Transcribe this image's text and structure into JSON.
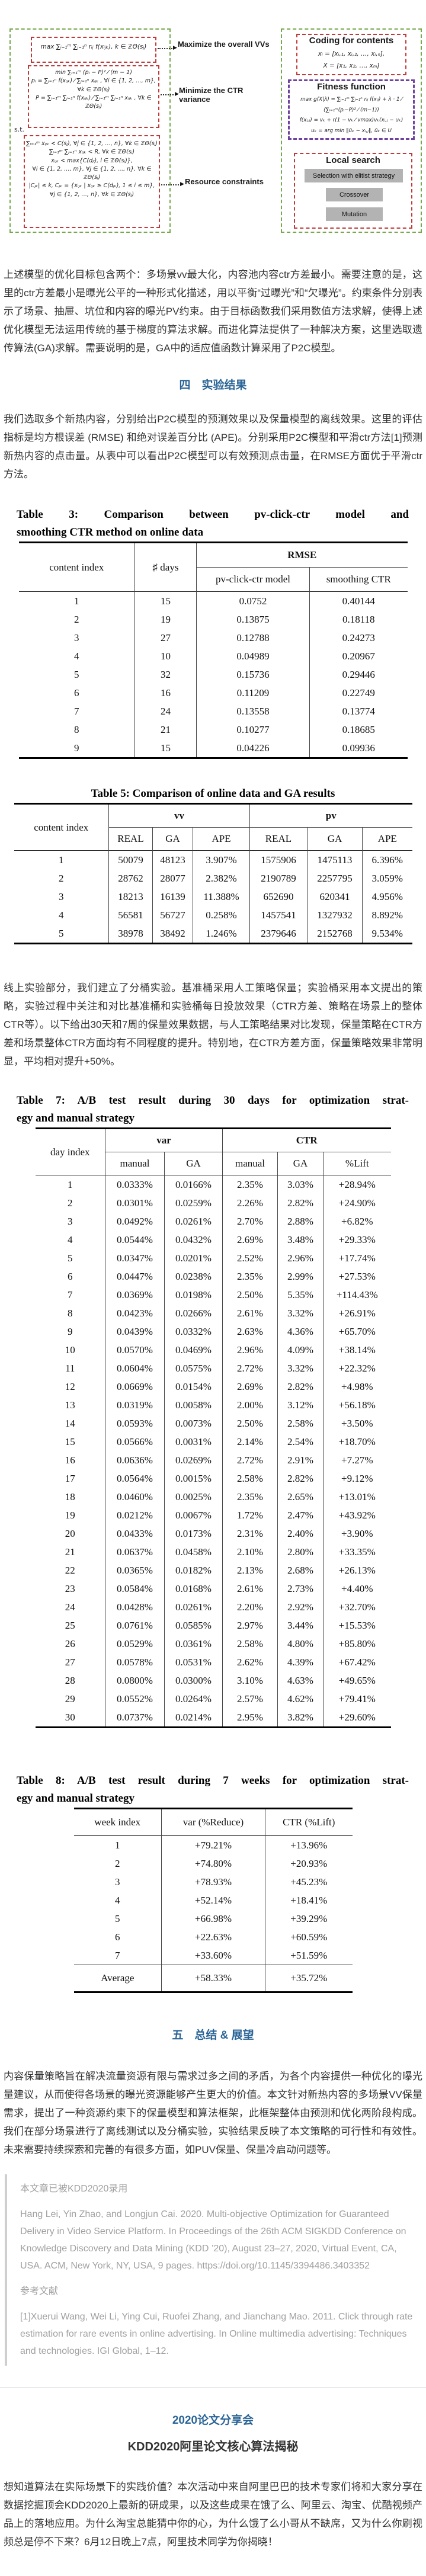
{
  "figure": {
    "left_panel": {
      "objective_max": "max ∑ᵢ₌₁ᵐ ∑ⱼ₌₁ⁿ rᵢⱼ f(xᵢⱼₖ), k ∈ ℤΘ(sⱼ)",
      "objective_min_lines": [
        "min  ∑ᵢ₌₁ᵐ (pᵢ − P)² ⁄ (m − 1)",
        "pᵢ = ∑ⱼ₌₁ⁿ f(xᵢⱼₖ) ⁄ ∑ⱼ₌₁ⁿ xᵢⱼₖ , ∀i ∈ {1, 2, …, m}, ∀k ∈ ℤΘ(sⱼ)",
        "P = ∑ᵢ₌₁ᵐ ∑ⱼ₌₁ⁿ f(xᵢⱼₖ) ⁄ ∑ᵢ₌₁ᵐ ∑ⱼ₌₁ⁿ xᵢⱼₖ , ∀k ∈ ℤΘ(sⱼ)"
      ],
      "st_label": "s.t.",
      "constraint_lines": [
        "∑ᵢ₌₁ᵐ xᵢⱼₖ < C(sⱼ), ∀j ∈ {1, 2, …, n}, ∀k ∈ ℤΘ(sⱼ)",
        "∑ᵢ₌₁ᵐ ∑ⱼ₌₁ⁿ xᵢⱼₖ < R, ∀k ∈ ℤΘ(sⱼ)",
        "xᵢⱼₖ < max{C(dⱼₗ), l ∈ ℤΘ(sⱼ)},",
        "∀i ∈ {1, 2, …, m}, ∀j ∈ {1, 2, …, n}, ∀k ∈ ℤΘ(sⱼ)",
        "|Cⱼₖ| ≤ k, Cⱼₖ = {xᵢⱼₖ | xᵢⱼₖ ≥ C(dⱼₖ), 1 ≤ i ≤ m},",
        "∀j ∈ {1, 2, …, n}, ∀k ∈ ℤΘ(sⱼ)"
      ]
    },
    "arrow_labels": {
      "maximize": "Maximize the overall VVs",
      "minimize": "Minimize the CTR variance",
      "resource": "Resource constraints",
      "arrow_glyph": "▶"
    },
    "right_panel": {
      "coding_title": "Coding for contents",
      "coding_lines": [
        "xᵢ = [xᵢ,₁, xᵢ,₂, …, xᵢ,ₙ],",
        "X = [x₁, x₂, …, xₘ]"
      ],
      "fitness_title": "Fitness function",
      "fitness_lines": [
        "max g(X|λ) = ∑ᵢ₌₁ᵐ ∑ⱼ₌₁ⁿ rᵢⱼ f(xᵢⱼ) + λ · 1 ⁄ (∑ᵢ₌₁ᵐ(pᵢ−P)² ⁄ (m−1))",
        "f(xᵢ,ⱼ) = vₖ + r(1 − vₖ ⁄ vmax)vₖ(xᵢ,ⱼ − uₖ)",
        "uₖ = arg min ‖ũₖ − xᵢ,ⱼ‖, ũₖ ∈ U"
      ],
      "local_title": "Local search",
      "local_buttons": [
        "Selection with elitist strategy",
        "Crossover",
        "Mutation"
      ]
    },
    "colors": {
      "outer_box_green": "#76a94c",
      "inner_box_red": "#bf3a3a",
      "fitness_box_purple": "#6f42a0",
      "button_gray": "#b3b3b3"
    }
  },
  "para1": "上述模型的优化目标包含两个：多场景vv最大化，内容池内容ctr方差最小。需要注意的是，这里的ctr方差最小是曝光公平的一种形式化描述，用以平衡“过曝光”和“欠曝光”。约束条件分别表示了场景、抽屉、坑位和内容的曝光PV约束。由于目标函数我们采用数值方法求解，使得上述优化模型无法运用传统的基于梯度的算法求解。而进化算法提供了一种解决方案，这里选取遗传算法(GA)求解。需要说明的是，GA中的适应值函数计算采用了P2C模型。",
  "section4": {
    "title": "四　实验结果",
    "accent_color": "#2a6496"
  },
  "para2": "我们选取多个新热内容，分别给出P2C模型的预测效果以及保量模型的离线效果。这里的评估指标是均方根误差 (RMSE) 和绝对误差百分比 (APE)。分别采用P2C模型和平滑ctr方法[1]预测新热内容的点击量。从表中可以看出P2C模型可以有效预测点击量，在RMSE方面优于平滑ctr方法。",
  "table3": {
    "caption_line1": "Table 3: Comparison between pv-click-ctr model and",
    "caption_line2": "smoothing CTR method on online data",
    "col_content_index": "content index",
    "col_days": "♯ days",
    "col_rmse": "RMSE",
    "col_model": "pv-click-ctr model",
    "col_smoothing": "smoothing CTR",
    "rows": [
      [
        "1",
        "15",
        "0.0752",
        "0.40144"
      ],
      [
        "2",
        "19",
        "0.13875",
        "0.18118"
      ],
      [
        "3",
        "27",
        "0.12788",
        "0.24273"
      ],
      [
        "4",
        "10",
        "0.04989",
        "0.20967"
      ],
      [
        "5",
        "32",
        "0.15736",
        "0.29446"
      ],
      [
        "6",
        "16",
        "0.11209",
        "0.22749"
      ],
      [
        "7",
        "24",
        "0.13558",
        "0.13774"
      ],
      [
        "8",
        "21",
        "0.10277",
        "0.18685"
      ],
      [
        "9",
        "15",
        "0.04226",
        "0.09936"
      ]
    ]
  },
  "table5": {
    "caption": "Table 5: Comparison of online data and GA results",
    "col_content_index": "content index",
    "col_vv": "vv",
    "col_pv": "pv",
    "sub_headers": [
      "REAL",
      "GA",
      "APE",
      "REAL",
      "GA",
      "APE"
    ],
    "rows": [
      [
        "1",
        "50079",
        "48123",
        "3.907%",
        "1575906",
        "1475113",
        "6.396%"
      ],
      [
        "2",
        "28762",
        "28077",
        "2.382%",
        "2190789",
        "2257795",
        "3.059%"
      ],
      [
        "3",
        "18213",
        "16139",
        "11.388%",
        "652690",
        "620341",
        "4.956%"
      ],
      [
        "4",
        "56581",
        "56727",
        "0.258%",
        "1457541",
        "1327932",
        "8.892%"
      ],
      [
        "5",
        "38978",
        "38492",
        "1.246%",
        "2379646",
        "2152768",
        "9.534%"
      ]
    ]
  },
  "para3": "线上实验部分，我们建立了分桶实验。基准桶采用人工策略保量；实验桶采用本文提出的策略，实验过程中关注和对比基准桶和实验桶每日投放效果（CTR方差、策略在场景上的整体CTR等）。以下给出30天和7周的保量效果数据，与人工策略结果对比发现，保量策略在CTR方差和场景整体CTR方面均有不同程度的提升。特别地，在CTR方差方面，保量策略效果非常明显，平均相对提升+50%。",
  "table7": {
    "caption_line1": "Table 7: A/B test result during 30 days for optimization strat-",
    "caption_line2": "egy and manual strategy",
    "col_day_index": "day index",
    "col_var": "var",
    "col_ctr": "CTR",
    "sub_manual1": "manual",
    "sub_ga1": "GA",
    "sub_manual2": "manual",
    "sub_ga2": "GA",
    "sub_lift": "%Lift",
    "rows": [
      [
        "1",
        "0.0333%",
        "0.0166%",
        "2.35%",
        "3.03%",
        "+28.94%"
      ],
      [
        "2",
        "0.0301%",
        "0.0259%",
        "2.26%",
        "2.82%",
        "+24.90%"
      ],
      [
        "3",
        "0.0492%",
        "0.0261%",
        "2.70%",
        "2.88%",
        "+6.82%"
      ],
      [
        "4",
        "0.0544%",
        "0.0432%",
        "2.69%",
        "3.48%",
        "+29.33%"
      ],
      [
        "5",
        "0.0347%",
        "0.0201%",
        "2.52%",
        "2.96%",
        "+17.74%"
      ],
      [
        "6",
        "0.0447%",
        "0.0238%",
        "2.35%",
        "2.99%",
        "+27.53%"
      ],
      [
        "7",
        "0.0369%",
        "0.0198%",
        "2.50%",
        "5.35%",
        "+114.43%"
      ],
      [
        "8",
        "0.0423%",
        "0.0266%",
        "2.61%",
        "3.32%",
        "+26.91%"
      ],
      [
        "9",
        "0.0439%",
        "0.0332%",
        "2.63%",
        "4.36%",
        "+65.70%"
      ],
      [
        "10",
        "0.0570%",
        "0.0469%",
        "2.96%",
        "4.09%",
        "+38.14%"
      ],
      [
        "11",
        "0.0604%",
        "0.0575%",
        "2.72%",
        "3.32%",
        "+22.32%"
      ],
      [
        "12",
        "0.0669%",
        "0.0154%",
        "2.69%",
        "2.82%",
        "+4.98%"
      ],
      [
        "13",
        "0.0319%",
        "0.0058%",
        "2.00%",
        "3.12%",
        "+56.18%"
      ],
      [
        "14",
        "0.0593%",
        "0.0073%",
        "2.50%",
        "2.58%",
        "+3.50%"
      ],
      [
        "15",
        "0.0566%",
        "0.0031%",
        "2.14%",
        "2.54%",
        "+18.70%"
      ],
      [
        "16",
        "0.0636%",
        "0.0269%",
        "2.72%",
        "2.91%",
        "+7.27%"
      ],
      [
        "17",
        "0.0564%",
        "0.0015%",
        "2.58%",
        "2.82%",
        "+9.12%"
      ],
      [
        "18",
        "0.0460%",
        "0.0025%",
        "2.35%",
        "2.65%",
        "+13.01%"
      ],
      [
        "19",
        "0.0212%",
        "0.0067%",
        "1.72%",
        "2.47%",
        "+43.92%"
      ],
      [
        "20",
        "0.0433%",
        "0.0173%",
        "2.31%",
        "2.40%",
        "+3.90%"
      ],
      [
        "21",
        "0.0637%",
        "0.0458%",
        "2.10%",
        "2.80%",
        "+33.35%"
      ],
      [
        "22",
        "0.0365%",
        "0.0182%",
        "2.13%",
        "2.68%",
        "+26.13%"
      ],
      [
        "23",
        "0.0584%",
        "0.0168%",
        "2.61%",
        "2.73%",
        "+4.40%"
      ],
      [
        "24",
        "0.0428%",
        "0.0261%",
        "2.20%",
        "2.92%",
        "+32.70%"
      ],
      [
        "25",
        "0.0761%",
        "0.0585%",
        "2.97%",
        "3.44%",
        "+15.53%"
      ],
      [
        "26",
        "0.0529%",
        "0.0361%",
        "2.58%",
        "4.80%",
        "+85.80%"
      ],
      [
        "27",
        "0.0578%",
        "0.0531%",
        "2.62%",
        "4.39%",
        "+67.42%"
      ],
      [
        "28",
        "0.0800%",
        "0.0300%",
        "3.10%",
        "4.63%",
        "+49.65%"
      ],
      [
        "29",
        "0.0552%",
        "0.0264%",
        "2.57%",
        "4.62%",
        "+79.41%"
      ],
      [
        "30",
        "0.0737%",
        "0.0214%",
        "2.95%",
        "3.82%",
        "+29.60%"
      ]
    ]
  },
  "table8": {
    "caption_line1": "Table 8: A/B test result during 7 weeks for optimization strat-",
    "caption_line2": "egy and manual strategy",
    "col_week_index": "week index",
    "col_var_reduce": "var (%Reduce)",
    "col_ctr_lift": "CTR (%Lift)",
    "rows": [
      [
        "1",
        "+79.21%",
        "+13.96%"
      ],
      [
        "2",
        "+74.80%",
        "+20.93%"
      ],
      [
        "3",
        "+78.93%",
        "+45.23%"
      ],
      [
        "4",
        "+52.14%",
        "+18.41%"
      ],
      [
        "5",
        "+66.98%",
        "+39.29%"
      ],
      [
        "6",
        "+22.63%",
        "+60.59%"
      ],
      [
        "7",
        "+33.60%",
        "+51.59%"
      ]
    ],
    "average_rows": [
      [
        "Average",
        "+58.33%",
        "+35.72%"
      ]
    ]
  },
  "section5": {
    "title": "五　总结 & 展望",
    "accent_color": "#2a6496"
  },
  "para4": "内容保量策略旨在解决流量资源有限与需求过多之间的矛盾，为各个内容提供一种优化的曝光量建议，从而使得各场景的曝光资源能够产生更大的价值。本文针对新热内容的多场景VV保量需求，提出了一种资源约束下的保量模型和算法框架，此框架整体由预测和优化两阶段构成。我们在部分场景进行了离线测试以及分桶实验，实验结果反映了本文策略的可行性和有效性。未来需要持续探索和完善的有很多方面，如PUV保量、保量冷启动问题等。",
  "note": {
    "accepted": "本文章已被KDD2020录用",
    "citation": "Hang Lei, Yin Zhao, and Longjun Cai. 2020. Multi-objective Optimization for Guaranteed Delivery in Video Service Platform. In Proceedings of the 26th ACM SIGKDD Conference on Knowledge Discovery and Data Mining (KDD ’20), August 23–27, 2020, Virtual Event, CA, USA. ACM, New York, NY, USA, 9 pages. https://doi.org/10.1145/3394486.3403352",
    "ref_heading": "参考文献",
    "reference": "[1]Xuerui Wang, Wei Li, Ying Cui, Ruofei Zhang, and Jianchang Mao. 2011. Click through rate estimation for rare events in online advertising. In Online multimedia advertising: Techniques and technologies. IGI Global, 1–12."
  },
  "footer": {
    "event_title": "2020论文分享会",
    "event_subtitle": "KDD2020阿里论文核心算法揭秘",
    "event_desc": "想知道算法在实际场景下的实践价值？本次活动中来自阿里巴巴的技术专家们将和大家分享在数据挖掘顶会KDD2020上最新的研成果，以及这些成果在饿了么、阿里云、淘宝、优酷视频产品上的落地应用。为什么淘宝总能猜中你的心，为什么饿了么小哥从不缺席，又为什么你刷视频总是停不下来？6月12日晚上7点，阿里技术同学为你揭晓！"
  }
}
